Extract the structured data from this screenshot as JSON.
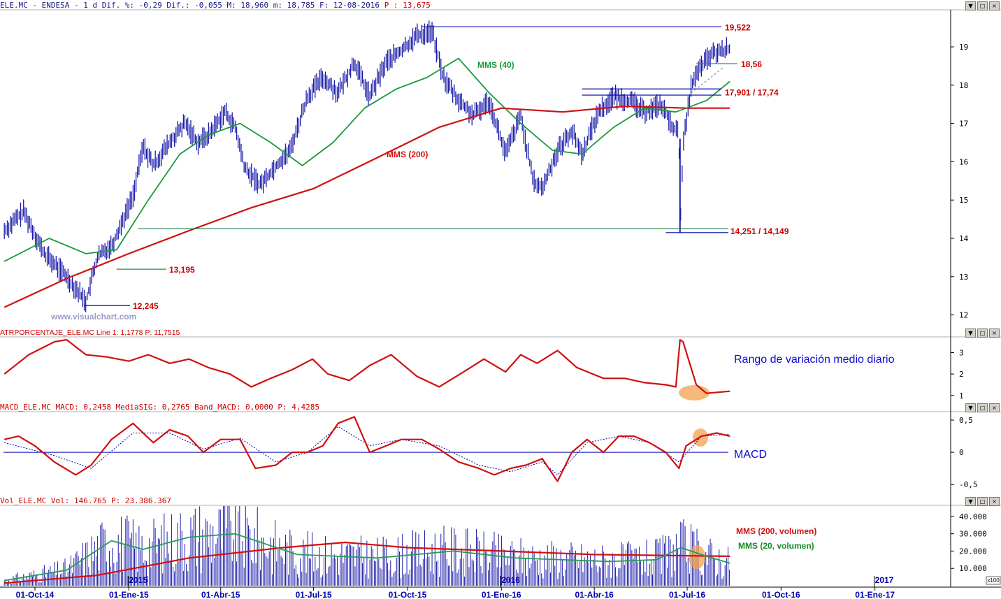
{
  "panels": {
    "price": {
      "header": "ELE.MC - ENDESA - 1 d Dif. %: -0,29 Dif.: -0,055 M: 18,960 m: 18,785 F: 12-08-2016",
      "header_extra": "P : 13,675",
      "watermark": "www.visualchart.com"
    },
    "atr": {
      "header": "ATRPORCENTAJE_ELE.MC Line 1: 1,1778 P: 11,7515",
      "note": "Rango de variación medio diario"
    },
    "macd": {
      "header": "MACD_ELE.MC MACD: 0,2458 MediaSIG: 0,2765 Band_MACD: 0,0000 P: 4,4285",
      "note": "MACD"
    },
    "vol": {
      "header": "Vol_ELE.MC Vol: 146.765 P: 23.386.367",
      "unit": "x100"
    }
  },
  "window_buttons": [
    "▼",
    "□",
    "×"
  ],
  "colors": {
    "price_bars": "#1c1caa",
    "mms40": "#1a9a3a",
    "mms200": "#d01010",
    "annotation_red": "#cc0000",
    "note_blue": "#0a0ad0",
    "highlight": "#f4a050",
    "axis_blue": "#0000aa"
  },
  "chart_data": [
    {
      "type": "line",
      "title": "ELE.MC - ENDESA",
      "x_ticks": [
        "01-Oct-14",
        "01-Ene-15",
        "01-Abr-15",
        "01-Jul-15",
        "01-Oct-15",
        "01-Ene-16",
        "01-Abr-16",
        "01-Jul-16",
        "01-Oct-16",
        "01-Ene-17"
      ],
      "year_labels": [
        "2015",
        "2016",
        "2017"
      ],
      "y_ticks": [
        12,
        13,
        14,
        15,
        16,
        17,
        18,
        19
      ],
      "ylim": [
        11.7,
        19.95
      ],
      "series": [
        {
          "name": "Precio",
          "x": [
            "2014-09-01",
            "2014-09-20",
            "2014-10-10",
            "2014-11-01",
            "2014-11-20",
            "2014-12-01",
            "2014-12-16",
            "2015-01-05",
            "2015-01-15",
            "2015-01-25",
            "2015-02-10",
            "2015-02-25",
            "2015-03-10",
            "2015-03-20",
            "2015-04-05",
            "2015-04-15",
            "2015-04-25",
            "2015-05-10",
            "2015-05-25",
            "2015-06-08",
            "2015-06-25",
            "2015-07-10",
            "2015-07-25",
            "2015-08-10",
            "2015-08-25",
            "2015-09-10",
            "2015-09-25",
            "2015-10-10",
            "2015-10-25",
            "2015-11-05",
            "2015-11-20",
            "2015-12-05",
            "2015-12-20",
            "2016-01-05",
            "2016-01-20",
            "2016-02-01",
            "2016-02-10",
            "2016-02-25",
            "2016-03-10",
            "2016-03-20",
            "2016-04-05",
            "2016-04-20",
            "2016-05-05",
            "2016-05-20",
            "2016-06-05",
            "2016-06-15",
            "2016-06-23",
            "2016-06-24",
            "2016-06-27",
            "2016-07-05",
            "2016-07-15",
            "2016-07-25",
            "2016-08-12"
          ],
          "values": [
            14.2,
            14.7,
            13.6,
            13.0,
            12.35,
            13.5,
            13.85,
            15.1,
            16.4,
            15.9,
            16.5,
            17.0,
            16.5,
            16.7,
            17.3,
            16.9,
            15.8,
            15.4,
            15.9,
            16.3,
            17.7,
            18.2,
            17.8,
            18.6,
            17.7,
            18.6,
            18.9,
            19.3,
            19.4,
            18.2,
            17.6,
            17.2,
            17.6,
            16.2,
            17.2,
            15.5,
            15.3,
            16.3,
            16.8,
            16.2,
            17.3,
            17.7,
            17.6,
            17.3,
            17.5,
            17.0,
            16.7,
            14.25,
            16.4,
            18.0,
            18.5,
            18.8,
            18.96
          ]
        },
        {
          "name": "MMS (40)",
          "x": [
            "2014-09-01",
            "2014-10-15",
            "2014-11-20",
            "2014-12-20",
            "2015-01-20",
            "2015-02-20",
            "2015-03-20",
            "2015-04-20",
            "2015-05-20",
            "2015-06-20",
            "2015-07-20",
            "2015-08-20",
            "2015-09-20",
            "2015-10-20",
            "2015-11-20",
            "2015-12-20",
            "2016-01-20",
            "2016-02-20",
            "2016-03-20",
            "2016-04-20",
            "2016-05-20",
            "2016-06-20",
            "2016-07-20",
            "2016-08-12"
          ],
          "values": [
            13.4,
            14.0,
            13.6,
            13.7,
            15.0,
            16.2,
            16.7,
            17.0,
            16.5,
            15.9,
            16.5,
            17.4,
            17.9,
            18.2,
            18.7,
            17.8,
            17.0,
            16.3,
            16.2,
            16.9,
            17.4,
            17.3,
            17.6,
            18.1
          ]
        },
        {
          "name": "MMS (200)",
          "x": [
            "2014-09-01",
            "2014-11-01",
            "2015-01-01",
            "2015-03-01",
            "2015-05-01",
            "2015-07-01",
            "2015-09-01",
            "2015-11-01",
            "2016-01-01",
            "2016-03-01",
            "2016-05-01",
            "2016-07-01",
            "2016-08-12"
          ],
          "values": [
            12.2,
            12.95,
            13.6,
            14.2,
            14.8,
            15.3,
            16.1,
            16.9,
            17.4,
            17.3,
            17.45,
            17.4,
            17.4
          ]
        }
      ],
      "annotations": [
        {
          "text": "19,522",
          "y": 19.522
        },
        {
          "text": "18,56",
          "y": 18.56
        },
        {
          "text": "17,901 / 17,74",
          "y": 17.82
        },
        {
          "text": "14,251 / 14,149",
          "y": 14.2
        },
        {
          "text": "13,195",
          "y": 13.195
        },
        {
          "text": "12,245",
          "y": 12.245
        },
        {
          "text": "MMS (40)"
        },
        {
          "text": "MMS (200)"
        }
      ]
    },
    {
      "type": "line",
      "title": "ATRPORCENTAJE_ELE.MC",
      "y_ticks": [
        1,
        2,
        3
      ],
      "ylim": [
        0.7,
        3.7
      ],
      "series": [
        {
          "name": "ATR %",
          "x": [
            "2014-09-01",
            "2014-09-25",
            "2014-10-20",
            "2014-11-01",
            "2014-11-20",
            "2014-12-10",
            "2015-01-01",
            "2015-01-20",
            "2015-02-10",
            "2015-03-01",
            "2015-03-20",
            "2015-04-10",
            "2015-05-01",
            "2015-05-20",
            "2015-06-10",
            "2015-06-30",
            "2015-07-15",
            "2015-08-05",
            "2015-08-25",
            "2015-09-15",
            "2015-10-10",
            "2015-11-01",
            "2015-11-25",
            "2015-12-15",
            "2016-01-05",
            "2016-01-20",
            "2016-02-05",
            "2016-02-25",
            "2016-03-15",
            "2016-04-10",
            "2016-05-01",
            "2016-05-20",
            "2016-06-10",
            "2016-06-20",
            "2016-06-24",
            "2016-06-27",
            "2016-07-10",
            "2016-07-20",
            "2016-08-12"
          ],
          "values": [
            2.0,
            2.9,
            3.5,
            3.6,
            2.9,
            2.8,
            2.6,
            2.9,
            2.5,
            2.7,
            2.3,
            2.0,
            1.4,
            1.8,
            2.2,
            2.7,
            2.0,
            1.7,
            2.4,
            2.9,
            1.9,
            1.4,
            2.1,
            2.7,
            2.1,
            2.9,
            2.5,
            3.1,
            2.3,
            1.8,
            1.8,
            1.6,
            1.5,
            1.4,
            3.6,
            3.5,
            1.5,
            1.1,
            1.2
          ]
        }
      ],
      "annotations": [
        {
          "text": "Rango de variación medio diario"
        }
      ]
    },
    {
      "type": "line",
      "title": "MACD_ELE.MC",
      "y_ticks": [
        0.5,
        0,
        -0.5
      ],
      "y_tick_labels": [
        "0,5",
        "0",
        "-0,5"
      ],
      "ylim": [
        -0.65,
        0.62
      ],
      "series": [
        {
          "name": "MACD",
          "x": [
            "2014-09-01",
            "2014-09-15",
            "2014-10-01",
            "2014-10-20",
            "2014-11-10",
            "2014-11-25",
            "2014-12-15",
            "2015-01-05",
            "2015-01-25",
            "2015-02-10",
            "2015-02-28",
            "2015-03-15",
            "2015-04-01",
            "2015-04-20",
            "2015-05-05",
            "2015-05-25",
            "2015-06-10",
            "2015-06-25",
            "2015-07-10",
            "2015-07-25",
            "2015-08-10",
            "2015-08-25",
            "2015-09-10",
            "2015-09-25",
            "2015-10-15",
            "2015-11-01",
            "2015-11-20",
            "2015-12-10",
            "2015-12-25",
            "2016-01-10",
            "2016-01-25",
            "2016-02-10",
            "2016-02-25",
            "2016-03-10",
            "2016-03-25",
            "2016-04-10",
            "2016-04-25",
            "2016-05-10",
            "2016-05-25",
            "2016-06-10",
            "2016-06-23",
            "2016-06-30",
            "2016-07-15",
            "2016-07-30",
            "2016-08-12"
          ],
          "values": [
            0.2,
            0.25,
            0.1,
            -0.15,
            -0.35,
            -0.2,
            0.2,
            0.45,
            0.15,
            0.35,
            0.25,
            0.0,
            0.2,
            0.2,
            -0.25,
            -0.2,
            0.0,
            0.0,
            0.1,
            0.45,
            0.55,
            0.0,
            0.1,
            0.2,
            0.2,
            0.05,
            -0.15,
            -0.25,
            -0.35,
            -0.25,
            -0.2,
            -0.1,
            -0.45,
            0.0,
            0.2,
            0.0,
            0.25,
            0.25,
            0.15,
            0.0,
            -0.25,
            0.1,
            0.25,
            0.3,
            0.25
          ]
        },
        {
          "name": "MediaSIG",
          "x": [
            "2014-09-01",
            "2014-10-20",
            "2014-11-25",
            "2015-01-05",
            "2015-02-10",
            "2015-03-15",
            "2015-04-20",
            "2015-05-25",
            "2015-06-25",
            "2015-07-25",
            "2015-08-25",
            "2015-09-25",
            "2015-11-01",
            "2015-12-10",
            "2016-01-10",
            "2016-02-10",
            "2016-02-25",
            "2016-03-25",
            "2016-04-25",
            "2016-05-25",
            "2016-06-23",
            "2016-07-15",
            "2016-08-12"
          ],
          "values": [
            0.15,
            -0.05,
            -0.25,
            0.3,
            0.3,
            0.05,
            0.22,
            -0.15,
            0.0,
            0.4,
            0.1,
            0.2,
            0.1,
            -0.2,
            -0.3,
            -0.15,
            -0.35,
            0.15,
            0.25,
            0.15,
            -0.15,
            0.25,
            0.28
          ]
        }
      ],
      "annotations": [
        {
          "text": "MACD"
        }
      ]
    },
    {
      "type": "bar",
      "title": "Vol_ELE.MC",
      "y_ticks": [
        10000,
        20000,
        30000,
        40000
      ],
      "y_tick_labels": [
        "10.000",
        "20.000",
        "30.000",
        "40.000"
      ],
      "ylim": [
        0,
        46000
      ],
      "unit": "x100",
      "series": [
        {
          "name": "MMS (200, volumen)",
          "x": [
            "2014-09-01",
            "2014-12-01",
            "2015-03-01",
            "2015-06-01",
            "2015-08-01",
            "2015-10-01",
            "2016-01-01",
            "2016-04-01",
            "2016-08-12"
          ],
          "values": [
            1500,
            6000,
            16000,
            22000,
            25000,
            22000,
            20000,
            18000,
            17000
          ]
        },
        {
          "name": "MMS (20, volumen)",
          "x": [
            "2014-09-01",
            "2014-11-01",
            "2014-12-15",
            "2015-01-15",
            "2015-03-01",
            "2015-04-15",
            "2015-06-15",
            "2015-09-01",
            "2015-11-15",
            "2016-01-15",
            "2016-04-15",
            "2016-06-01",
            "2016-06-25",
            "2016-07-20",
            "2016-08-12"
          ],
          "values": [
            3000,
            9000,
            26000,
            21000,
            28000,
            30000,
            18000,
            16000,
            20000,
            16000,
            14000,
            15000,
            22000,
            17000,
            13000
          ]
        }
      ],
      "annotations": [
        {
          "text": "MMS (200, volumen)"
        },
        {
          "text": "MMS (20, volumen)"
        }
      ]
    }
  ]
}
